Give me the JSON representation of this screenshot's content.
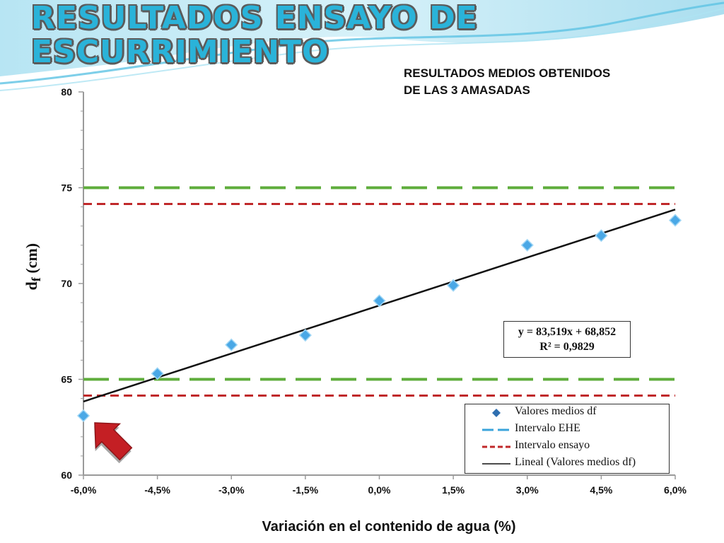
{
  "header": {
    "title": "RESULTADOS ENSAYO DE ESCURRIMIENTO",
    "subtitle": "RESULTADOS MEDIOS OBTENIDOS\nDE LAS 3 AMASADAS"
  },
  "colors": {
    "points": "#4aa8e6",
    "ehe_interval": "#5fad3c",
    "test_interval": "#c0282a",
    "trend": "#111111",
    "arrow": "#c41f24"
  },
  "chart_data": {
    "type": "scatter",
    "xlabel": "Variación en el contenido de agua (%)",
    "ylabel": "df (cm)",
    "ylabel_main": "d",
    "ylabel_sub": "f",
    "ylabel_unit": " (cm)",
    "xlim": [
      -0.06,
      0.06
    ],
    "ylim": [
      60,
      80
    ],
    "x_ticks": [
      -0.06,
      -0.045,
      -0.03,
      -0.015,
      0.0,
      0.015,
      0.03,
      0.045,
      0.06
    ],
    "x_tick_labels": [
      "-6,0%",
      "-4,5%",
      "-3,0%",
      "-1,5%",
      "0,0%",
      "1,5%",
      "3,0%",
      "4,5%",
      "6,0%"
    ],
    "y_ticks": [
      60,
      65,
      70,
      75,
      80
    ],
    "y_tick_labels": [
      "60",
      "65",
      "70",
      "75",
      "80"
    ],
    "series": [
      {
        "name": "Valores medios df",
        "x": [
          -0.06,
          -0.045,
          -0.03,
          -0.015,
          0.0,
          0.015,
          0.03,
          0.045,
          0.06
        ],
        "y": [
          63.1,
          65.3,
          66.8,
          67.3,
          69.1,
          69.9,
          72.0,
          72.5,
          73.3
        ]
      }
    ],
    "reference_lines": [
      {
        "name": "Intervalo EHE",
        "values": [
          65,
          75
        ],
        "style": "long-dash"
      },
      {
        "name": "Intervalo ensayo",
        "values": [
          64.15,
          74.15
        ],
        "style": "short-dash"
      }
    ],
    "trendline": {
      "name": "Lineal (Valores medios df)",
      "slope": 83.519,
      "intercept": 68.852,
      "equation": "y = 83,519x + 68,852",
      "r2": "R² = 0,9829"
    },
    "annotation": "arrow pointing to first data point",
    "legend_position": "bottom-right",
    "grid": false
  }
}
